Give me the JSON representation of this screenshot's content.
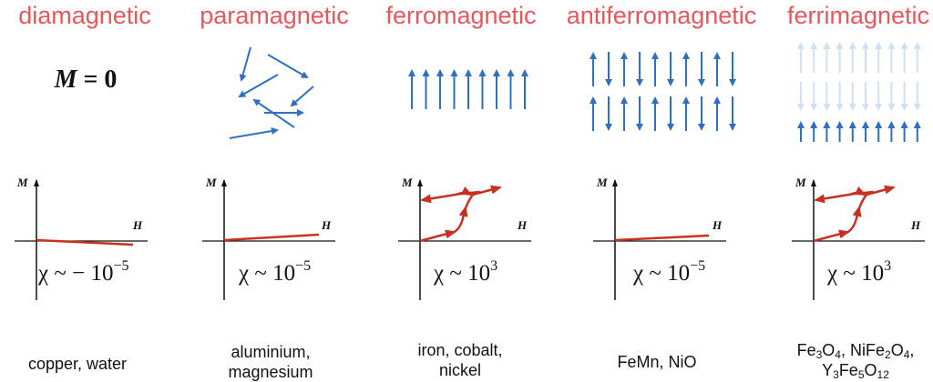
{
  "accent_color": "#e8575c",
  "arrow_color": "#2f6fc0",
  "curve_color": "#c7311f",
  "columns": [
    {
      "title": "diamagnetic",
      "label_text": "M = 0",
      "chi_symbol": "χ ~ − 10",
      "chi_exp": "−5",
      "m_axis": "M",
      "h_axis": "H",
      "example": "copper, water"
    },
    {
      "title": "paramagnetic",
      "chi_symbol": "χ ~ 10",
      "chi_exp": "−5",
      "m_axis": "M",
      "h_axis": "H",
      "example_line1": "aluminium,",
      "example_line2": "magnesium"
    },
    {
      "title": "ferromagnetic",
      "chi_symbol": "χ ~ 10",
      "chi_exp": "3",
      "m_axis": "M",
      "h_axis": "H",
      "example_line1": "iron, cobalt,",
      "example_line2": "nickel"
    },
    {
      "title": "antiferromagnetic",
      "chi_symbol": "χ ~ 10",
      "chi_exp": "−5",
      "m_axis": "M",
      "h_axis": "H",
      "example": "FeMn, NiO"
    },
    {
      "title": "ferrimagnetic",
      "chi_symbol": "χ ~ 10",
      "chi_exp": "3",
      "m_axis": "M",
      "h_axis": "H",
      "example_line1": "Fe3O4, NiFe2O4,",
      "example_line2": "Y3Fe5O12"
    }
  ],
  "formula_parts": {
    "fe3o4": [
      "Fe",
      "3",
      "O",
      "4"
    ],
    "nife2o4": [
      "NiFe",
      "2",
      "O",
      "4"
    ],
    "y3fe5o12": [
      "Y",
      "3",
      "Fe",
      "5",
      "O",
      "12"
    ]
  }
}
